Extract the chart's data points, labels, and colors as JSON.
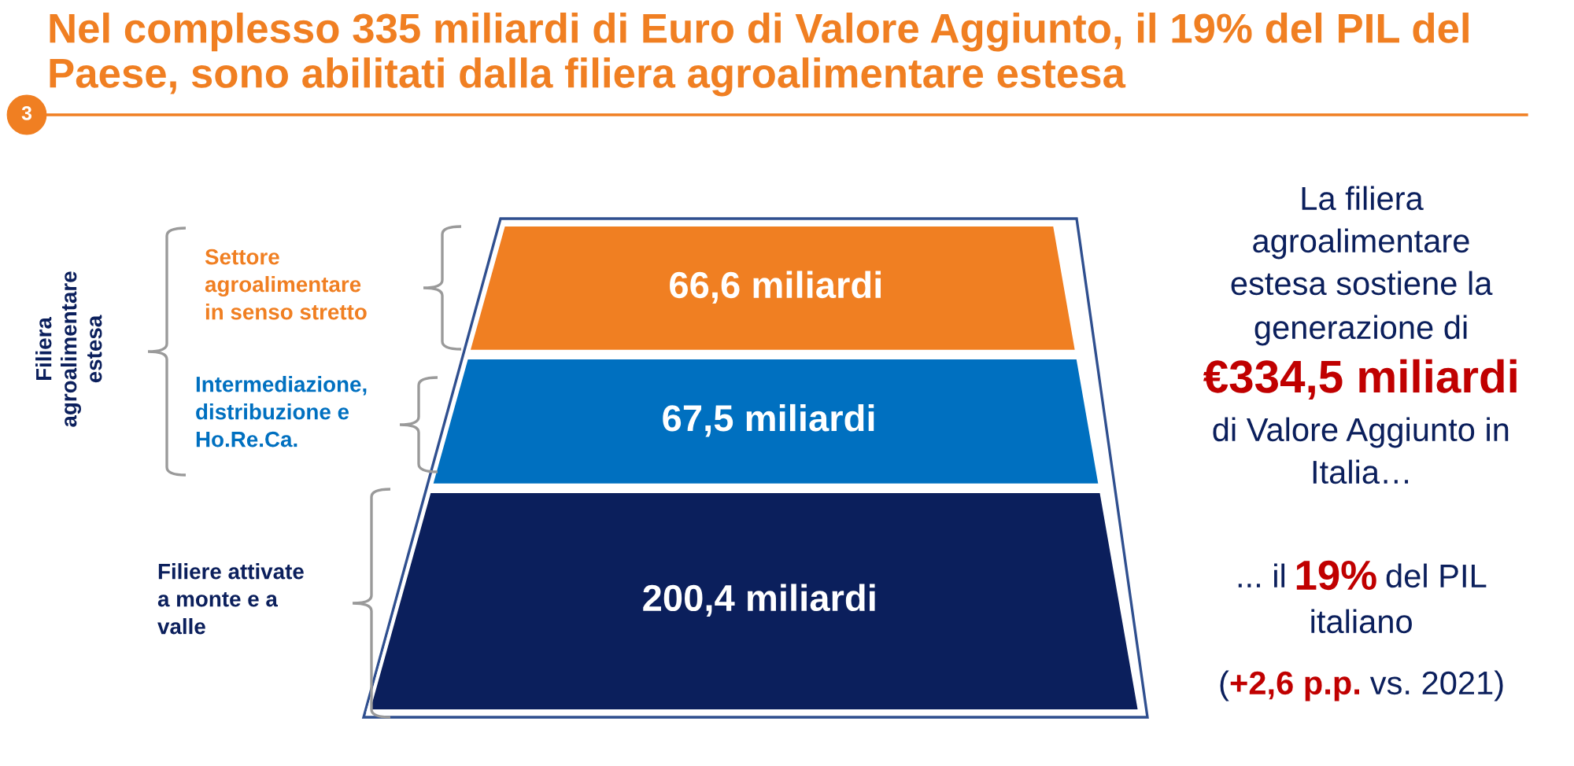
{
  "chart_data": {
    "type": "other",
    "title": "Nel complesso 335 miliardi di Euro di Valore Aggiunto, il 19% del PIL del\nPaese, sono abilitati dalla filiera agroalimentare estesa",
    "categories": [
      "Settore\nagroalimentare\nin senso stretto",
      "Intermediazione,\ndistribuzione e\nHo.Re.Ca.",
      "Filiere attivate\na monte e a\nvalle"
    ],
    "values": [
      66.6,
      67.5,
      200.4
    ],
    "value_labels": [
      "66,6 miliardi",
      "67,5 miliardi",
      "200,4 miliardi"
    ],
    "colors": [
      "#f07f22",
      "#0070c0",
      "#0b1f5c"
    ],
    "annotations": [
      "3",
      "Filiera\nagroalimentare\nestesa",
      "La filiera",
      "agroalimentare",
      "estesa sostiene la",
      "generazione di",
      "€334,5 miliardi",
      "di Valore Aggiunto in",
      "Italia…",
      "... il",
      "19%",
      "del PIL",
      "italiano",
      "(",
      "+2,6 p.p.",
      "vs. 2021)"
    ]
  }
}
